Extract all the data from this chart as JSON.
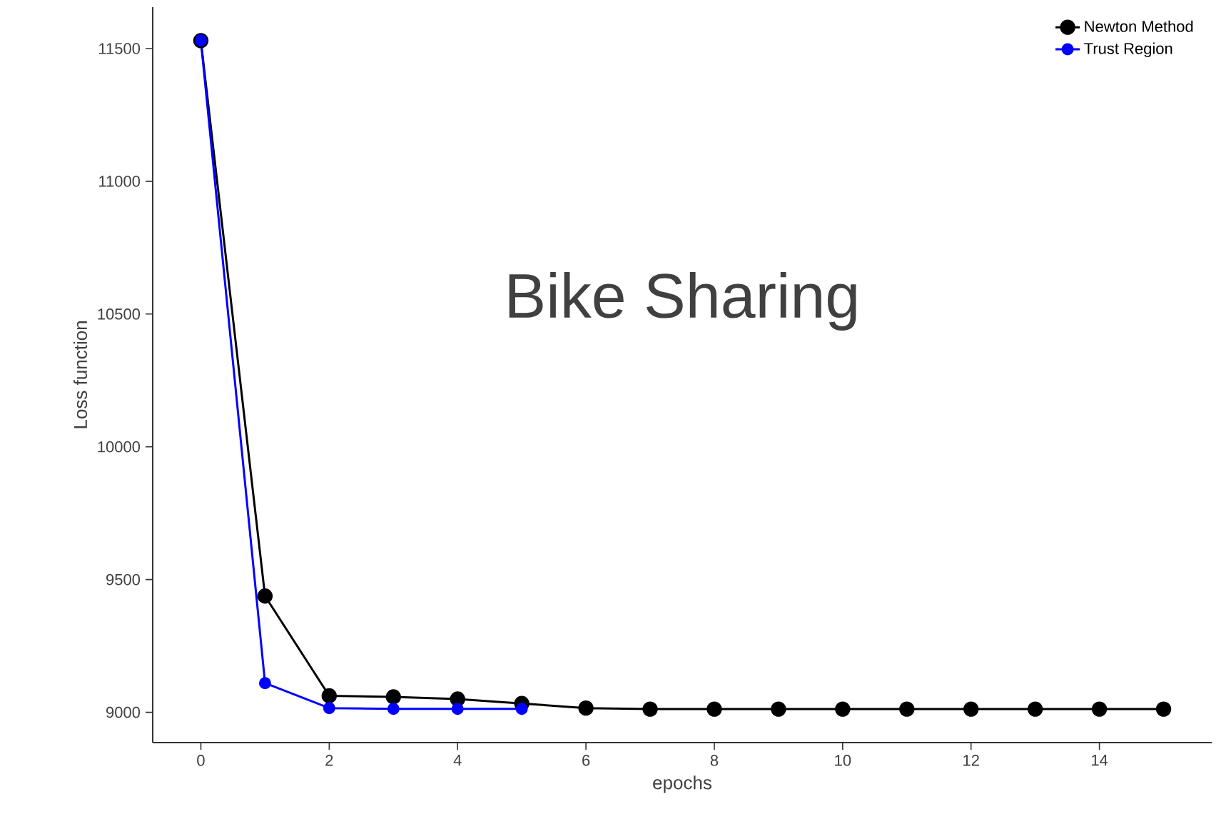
{
  "chart_data": {
    "type": "line",
    "xlabel": "epochs",
    "ylabel": "Loss function",
    "annotations": [
      "Bike Sharing"
    ],
    "x": [
      0,
      1,
      2,
      3,
      4,
      5,
      6,
      7,
      8,
      9,
      10,
      11,
      12,
      13,
      14,
      15
    ],
    "series": [
      {
        "name": "Newton Method",
        "color": "#000000",
        "values": [
          11530,
          9438,
          9062,
          9058,
          9050,
          9033,
          9016,
          9012,
          9012,
          9012,
          9012,
          9012,
          9012,
          9012,
          9012,
          9012
        ]
      },
      {
        "name": "Trust Region",
        "color": "#0000ff",
        "x": [
          0,
          1,
          2,
          3,
          4,
          5
        ],
        "values": [
          11530,
          9110,
          9016,
          9013,
          9013,
          9013
        ]
      }
    ],
    "xlim": [
      -0.75,
      15.75
    ],
    "ylim": [
      8886,
      11656
    ],
    "xticks": [
      0,
      2,
      4,
      6,
      8,
      10,
      12,
      14
    ],
    "yticks": [
      9000,
      9500,
      10000,
      10500,
      11000,
      11500
    ],
    "grid": false,
    "legend": "top right",
    "marker": "circle",
    "line_style": "solid"
  }
}
